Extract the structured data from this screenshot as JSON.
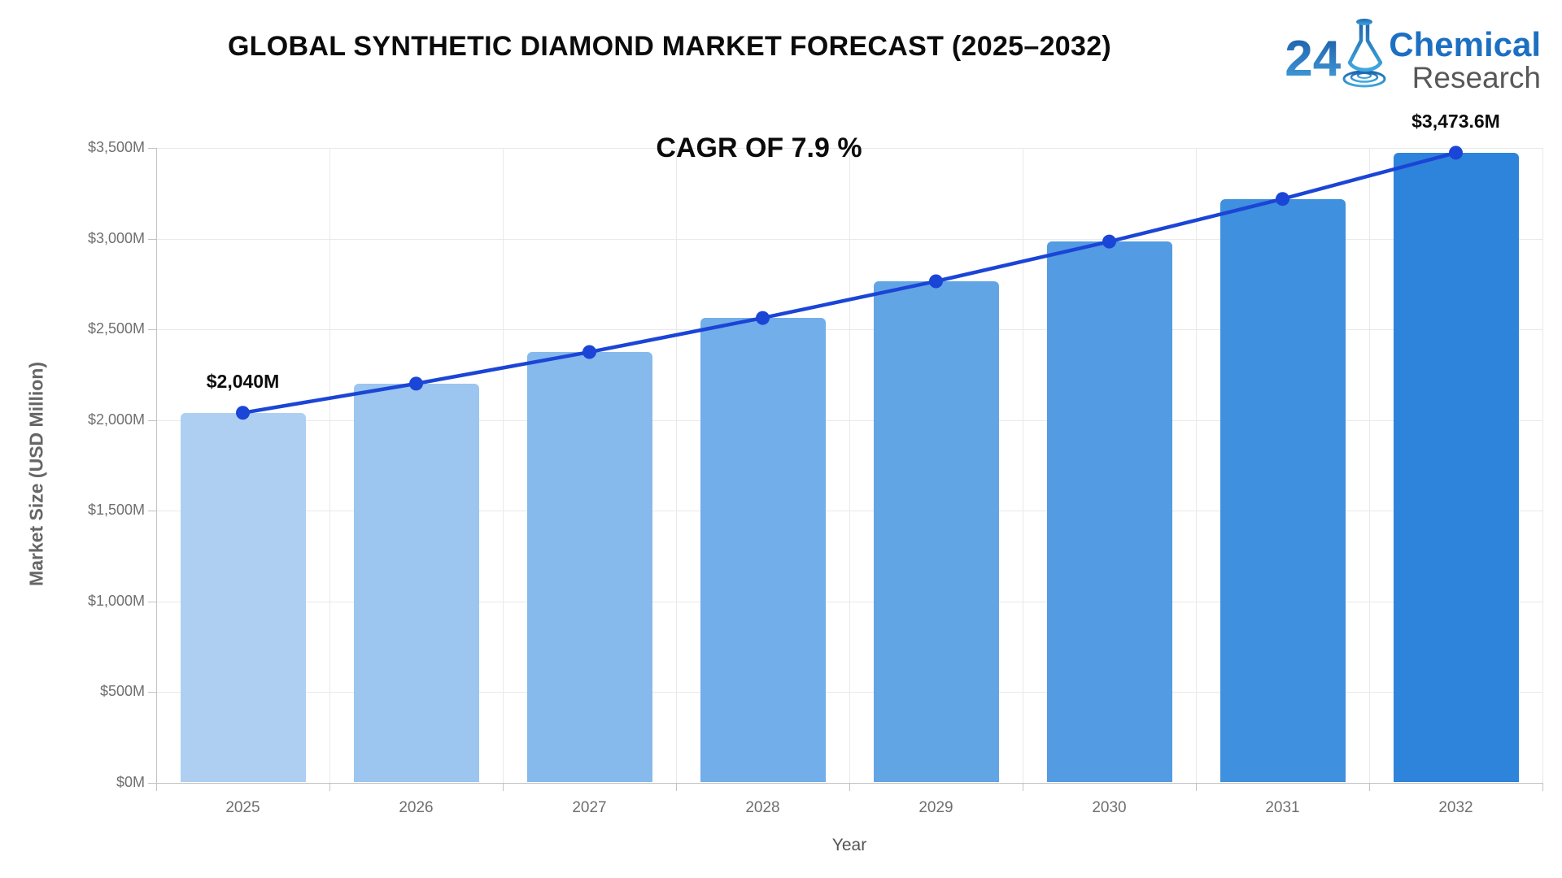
{
  "logo": {
    "number": "24",
    "line1": "Chemical",
    "line2": "Research"
  },
  "chart_data": {
    "type": "bar",
    "title": "GLOBAL SYNTHETIC DIAMOND MARKET FORECAST (2025–2032)",
    "annotation": "CAGR OF 7.9 %",
    "xlabel": "Year",
    "ylabel": "Market Size (USD Million)",
    "categories": [
      "2025",
      "2026",
      "2027",
      "2028",
      "2029",
      "2030",
      "2031",
      "2032"
    ],
    "series": [
      {
        "name": "Market Size (USD Million)",
        "type": "bar",
        "values": [
          2040,
          2201,
          2375,
          2563,
          2765,
          2984,
          3219,
          3473.6
        ]
      },
      {
        "name": "Trend",
        "type": "line",
        "values": [
          2040,
          2201,
          2375,
          2563,
          2765,
          2984,
          3219,
          3473.6
        ]
      }
    ],
    "bar_colors": [
      "#aecff2",
      "#9cc5ef",
      "#86b9ec",
      "#72aee9",
      "#62a5e5",
      "#539be2",
      "#3f90de",
      "#2e84da"
    ],
    "line_color": "#1b45d6",
    "dot_color": "#1b45d6",
    "ylim": [
      0,
      3500
    ],
    "ytick_step": 500,
    "ytick_labels": [
      "$0M",
      "$500M",
      "$1,000M",
      "$1,500M",
      "$2,000M",
      "$2,500M",
      "$3,000M",
      "$3,500M"
    ],
    "data_labels": [
      {
        "index": 0,
        "text": "$2,040M"
      },
      {
        "index": 7,
        "text": "$3,473.6M"
      }
    ],
    "grid": true,
    "legend": "none"
  }
}
